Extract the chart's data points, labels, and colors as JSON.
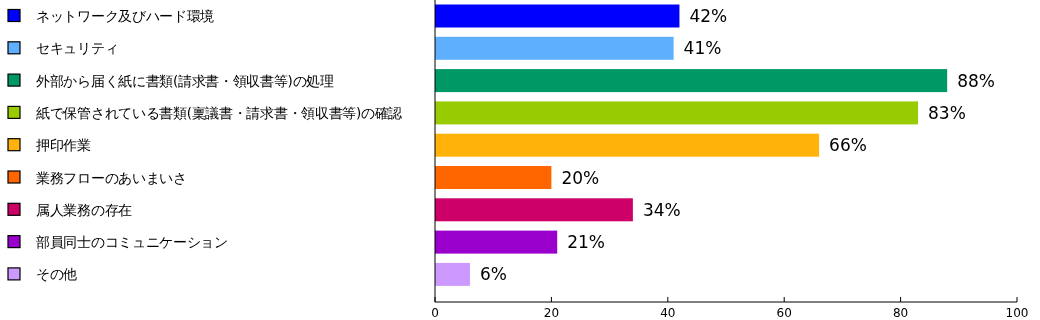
{
  "chart_data": {
    "type": "bar",
    "orientation": "horizontal",
    "categories": [
      "ネットワーク及びハード環境",
      "セキュリティ",
      "外部から届く紙に書類(請求書・領収書等)の処理",
      "紙で保管されている書類(稟議書・請求書・領収書等)の確認",
      "押印作業",
      "業務フローのあいまいさ",
      "属人業務の存在",
      "部員同士のコミュニケーション",
      "その他"
    ],
    "values": [
      42,
      41,
      88,
      83,
      66,
      20,
      34,
      21,
      6
    ],
    "colors": [
      "#0000ff",
      "#5eb0ff",
      "#009966",
      "#99cc00",
      "#ffb30a",
      "#ff6600",
      "#cc0066",
      "#9900cc",
      "#cc99ff"
    ],
    "value_labels": [
      "42%",
      "41%",
      "88%",
      "83%",
      "66%",
      "20%",
      "34%",
      "21%",
      "6%"
    ],
    "xlim": [
      0,
      100
    ],
    "xticks": [
      0,
      20,
      40,
      60,
      80,
      100
    ],
    "grid": false
  }
}
